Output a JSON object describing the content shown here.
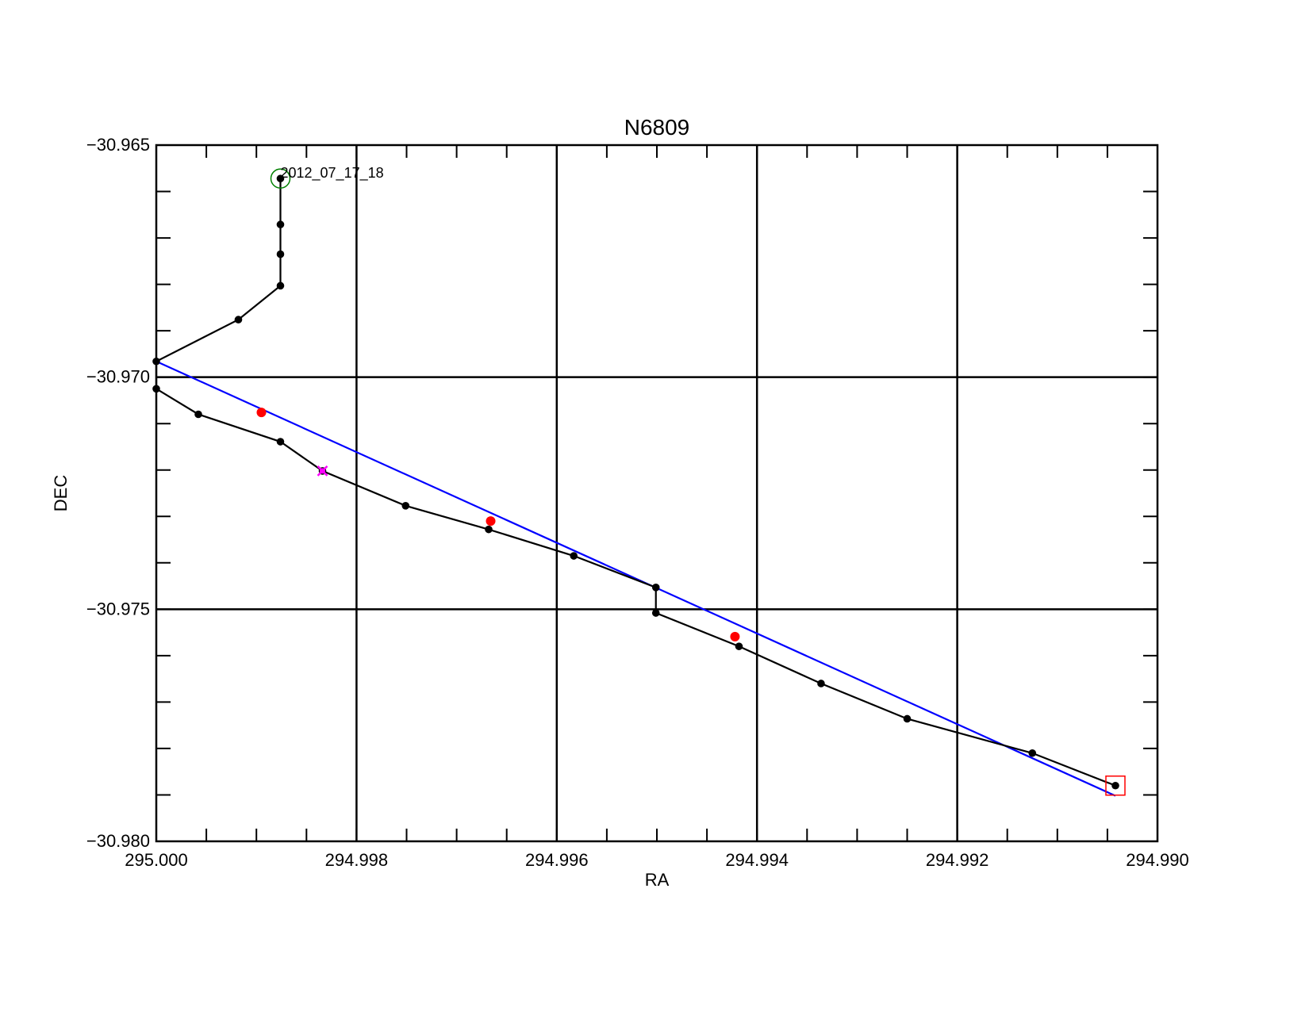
{
  "chart_data": {
    "type": "line",
    "title": "N6809",
    "xlabel": "RA",
    "ylabel": "DEC",
    "xlim": [
      295.0,
      294.99
    ],
    "ylim": [
      -30.98,
      -30.965
    ],
    "x_reversed": true,
    "grid": true,
    "x_major_ticks": [
      295.0,
      294.998,
      294.996,
      294.994,
      294.992,
      294.99
    ],
    "x_tick_labels": [
      "295.000",
      "294.998",
      "294.996",
      "294.994",
      "294.992",
      "294.990"
    ],
    "y_major_ticks": [
      -30.98,
      -30.975,
      -30.97,
      -30.965
    ],
    "y_tick_labels": [
      "−30.980",
      "−30.975",
      "−30.970",
      "−30.965"
    ],
    "series": [
      {
        "points": [
          [
            294.99876,
            -30.96572
          ],
          [
            294.99876,
            -30.96671
          ],
          [
            294.99876,
            -30.96735
          ],
          [
            294.99876,
            -30.96803
          ],
          [
            294.99918,
            -30.96876
          ],
          [
            295.0,
            -30.96966
          ],
          [
            295.0,
            -30.97025
          ],
          [
            294.99958,
            -30.9708
          ],
          [
            294.99876,
            -30.97139
          ],
          [
            294.99834,
            -30.97202
          ],
          [
            294.99751,
            -30.97277
          ],
          [
            294.99668,
            -30.97328
          ],
          [
            294.99583,
            -30.97385
          ],
          [
            294.99501,
            -30.97453
          ],
          [
            294.99501,
            -30.97508
          ],
          [
            294.99418,
            -30.9758
          ],
          [
            294.99336,
            -30.9766
          ],
          [
            294.9925,
            -30.97736
          ],
          [
            294.99125,
            -30.9781
          ],
          [
            294.99042,
            -30.9788
          ]
        ],
        "color": "#000000"
      },
      {
        "points": [
          [
            295.0,
            -30.96966
          ],
          [
            294.99042,
            -30.97902
          ]
        ],
        "color": "#0000ff"
      }
    ],
    "highlighted_points": [
      [
        294.99895,
        -30.97076
      ],
      [
        294.99666,
        -30.9731
      ],
      [
        294.99422,
        -30.97559
      ]
    ],
    "highlight_color": "#ff0000",
    "cross_marker": [
      294.99834,
      -30.97202
    ],
    "cross_color": "#ff00ff",
    "start_marker": [
      294.99876,
      -30.96572
    ],
    "start_color": "#008000",
    "end_marker": [
      294.99042,
      -30.9788
    ],
    "end_color": "#ff0000",
    "annotation": {
      "text": "2012_07_17_18",
      "x": 294.99876,
      "y": -30.96572
    }
  }
}
